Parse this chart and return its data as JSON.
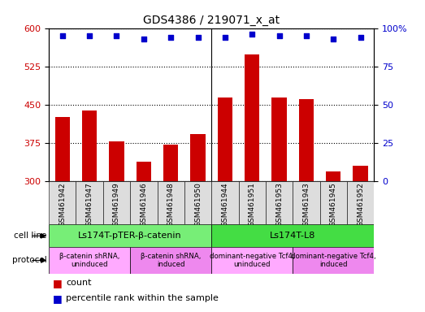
{
  "title": "GDS4386 / 219071_x_at",
  "samples": [
    "GSM461942",
    "GSM461947",
    "GSM461949",
    "GSM461946",
    "GSM461948",
    "GSM461950",
    "GSM461944",
    "GSM461951",
    "GSM461953",
    "GSM461943",
    "GSM461945",
    "GSM461952"
  ],
  "counts": [
    425,
    438,
    377,
    338,
    372,
    392,
    463,
    548,
    463,
    460,
    318,
    330
  ],
  "percentiles": [
    95,
    95,
    95,
    93,
    94,
    94,
    94,
    96,
    95,
    95,
    93,
    94
  ],
  "ylim_left": [
    300,
    600
  ],
  "ylim_right": [
    0,
    100
  ],
  "yticks_left": [
    300,
    375,
    450,
    525,
    600
  ],
  "yticks_right": [
    0,
    25,
    50,
    75,
    100
  ],
  "bar_color": "#cc0000",
  "dot_color": "#0000cc",
  "cell_line_groups": [
    {
      "label": "Ls174T-pTER-β-catenin",
      "start": 0,
      "end": 6,
      "color": "#77ee77"
    },
    {
      "label": "Ls174T-L8",
      "start": 6,
      "end": 12,
      "color": "#44dd44"
    }
  ],
  "protocol_groups": [
    {
      "label": "β-catenin shRNA,\nuninduced",
      "start": 0,
      "end": 3,
      "color": "#ffaaff"
    },
    {
      "label": "β-catenin shRNA,\ninduced",
      "start": 3,
      "end": 6,
      "color": "#ee88ee"
    },
    {
      "label": "dominant-negative Tcf4,\nuninduced",
      "start": 6,
      "end": 9,
      "color": "#ffaaff"
    },
    {
      "label": "dominant-negative Tcf4,\ninduced",
      "start": 9,
      "end": 12,
      "color": "#ee88ee"
    }
  ],
  "legend_count_color": "#cc0000",
  "legend_percentile_color": "#0000cc",
  "tick_label_bg": "#dddddd",
  "fig_width": 5.23,
  "fig_height": 3.84,
  "dpi": 100
}
